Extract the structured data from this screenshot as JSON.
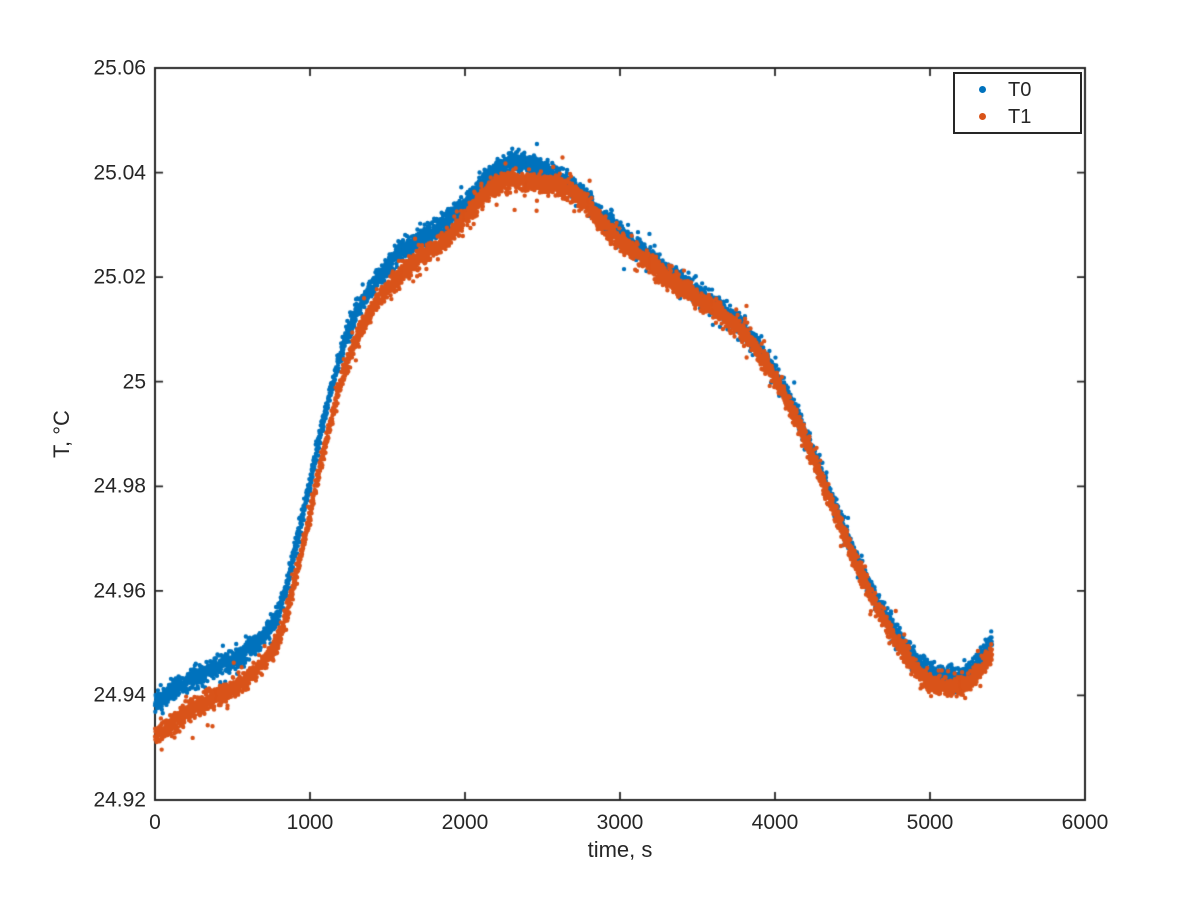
{
  "chart_data": {
    "type": "scatter",
    "title": "",
    "xlabel": "time, s",
    "ylabel": "T, °C",
    "xlim": [
      0,
      6000
    ],
    "ylim": [
      24.92,
      25.06
    ],
    "xticks": [
      0,
      1000,
      2000,
      3000,
      4000,
      5000,
      6000
    ],
    "xtick_labels": [
      "0",
      "1000",
      "2000",
      "3000",
      "4000",
      "5000",
      "6000"
    ],
    "yticks": [
      24.92,
      24.94,
      24.96,
      24.98,
      25,
      25.02,
      25.04,
      25.06
    ],
    "ytick_labels": [
      "24.92",
      "24.94",
      "24.96",
      "24.98",
      "25",
      "25.02",
      "25.04",
      "25.06"
    ],
    "grid": false,
    "box": true,
    "axis_color": "#262626",
    "background": "#ffffff",
    "legend": {
      "position": "northeast"
    },
    "marker": {
      "style": "point",
      "radius_px": 2.2
    },
    "sampling": {
      "t_start": 0,
      "t_end": 5400,
      "n_points": 5401
    },
    "noise_sigma": 0.0009,
    "series": [
      {
        "name": "T0",
        "color": "#0072BD",
        "anchors": [
          [
            0,
            24.939
          ],
          [
            200,
            24.9425
          ],
          [
            400,
            24.9455
          ],
          [
            600,
            24.9485
          ],
          [
            800,
            24.956
          ],
          [
            950,
            24.974
          ],
          [
            1100,
            24.994
          ],
          [
            1250,
            25.01
          ],
          [
            1400,
            25.018
          ],
          [
            1550,
            25.024
          ],
          [
            1700,
            25.027
          ],
          [
            1850,
            25.03
          ],
          [
            2000,
            25.034
          ],
          [
            2150,
            25.039
          ],
          [
            2300,
            25.042
          ],
          [
            2450,
            25.0415
          ],
          [
            2600,
            25.039
          ],
          [
            2750,
            25.036
          ],
          [
            2900,
            25.031
          ],
          [
            3050,
            25.027
          ],
          [
            3200,
            25.0235
          ],
          [
            3350,
            25.02
          ],
          [
            3500,
            25.017
          ],
          [
            3650,
            25.014
          ],
          [
            3800,
            25.01
          ],
          [
            3950,
            25.004
          ],
          [
            4100,
            24.996
          ],
          [
            4250,
            24.986
          ],
          [
            4400,
            24.975
          ],
          [
            4550,
            24.9645
          ],
          [
            4700,
            24.956
          ],
          [
            4850,
            24.949
          ],
          [
            5000,
            24.9445
          ],
          [
            5150,
            24.9435
          ],
          [
            5250,
            24.9445
          ],
          [
            5350,
            24.948
          ],
          [
            5400,
            24.95
          ]
        ]
      },
      {
        "name": "T1",
        "color": "#D95319",
        "anchors": [
          [
            0,
            24.9325
          ],
          [
            200,
            24.9365
          ],
          [
            400,
            24.94
          ],
          [
            600,
            24.9435
          ],
          [
            800,
            24.951
          ],
          [
            950,
            24.968
          ],
          [
            1100,
            24.988
          ],
          [
            1250,
            25.0045
          ],
          [
            1400,
            25.0135
          ],
          [
            1550,
            25.0195
          ],
          [
            1700,
            25.0235
          ],
          [
            1850,
            25.0265
          ],
          [
            2000,
            25.0315
          ],
          [
            2150,
            25.0365
          ],
          [
            2300,
            25.0385
          ],
          [
            2450,
            25.038
          ],
          [
            2600,
            25.0375
          ],
          [
            2750,
            25.035
          ],
          [
            2900,
            25.03
          ],
          [
            3050,
            25.026
          ],
          [
            3200,
            25.0225
          ],
          [
            3350,
            25.019
          ],
          [
            3500,
            25.016
          ],
          [
            3650,
            25.013
          ],
          [
            3800,
            25.009
          ],
          [
            3950,
            25.003
          ],
          [
            4100,
            24.995
          ],
          [
            4250,
            24.985
          ],
          [
            4400,
            24.974
          ],
          [
            4550,
            24.9635
          ],
          [
            4700,
            24.9545
          ],
          [
            4850,
            24.9475
          ],
          [
            5000,
            24.9425
          ],
          [
            5150,
            24.9415
          ],
          [
            5250,
            24.9425
          ],
          [
            5350,
            24.946
          ],
          [
            5400,
            24.948
          ]
        ]
      }
    ]
  }
}
